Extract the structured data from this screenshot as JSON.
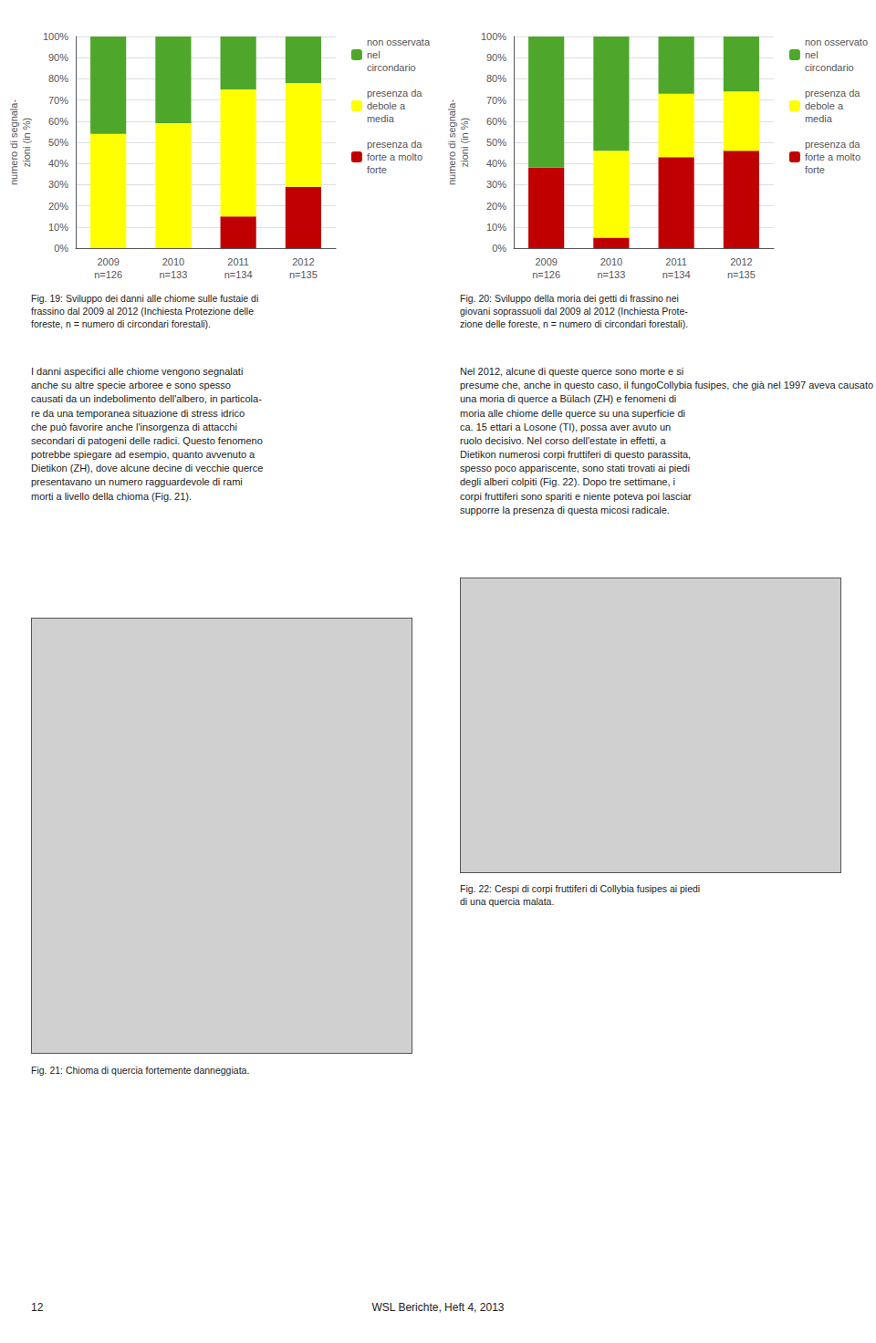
{
  "chart_data": [
    {
      "type": "bar",
      "stacked": true,
      "ylabel": "numero di segnala-\nzioni (in %)",
      "categories": [
        "2009\nn=126",
        "2010\nn=133",
        "2011\nn=134",
        "2012\nn=135"
      ],
      "series": [
        {
          "name": "presenza da\nforte a molto\nforte",
          "color": "#C00000",
          "values": [
            0,
            0,
            15,
            29
          ]
        },
        {
          "name": "presenza da\ndebole a\nmedia",
          "color": "#FFFF00",
          "values": [
            54,
            59,
            60,
            49
          ]
        },
        {
          "name": "non osservata\nnel\ncircondario",
          "color": "#4EA72A",
          "values": [
            46,
            41,
            25,
            22
          ]
        }
      ],
      "ylim": [
        0,
        100
      ],
      "yticks": [
        {
          "value": 0,
          "label": "0%"
        },
        {
          "value": 10,
          "label": "10%"
        },
        {
          "value": 20,
          "label": "20%"
        },
        {
          "value": 30,
          "label": "30%"
        },
        {
          "value": 40,
          "label": "40%"
        },
        {
          "value": 50,
          "label": "50%"
        },
        {
          "value": 60,
          "label": "60%"
        },
        {
          "value": 70,
          "label": "70%"
        },
        {
          "value": 80,
          "label": "80%"
        },
        {
          "value": 90,
          "label": "90%"
        },
        {
          "value": 100,
          "label": "100%"
        }
      ],
      "grid": true,
      "legend": "right",
      "annotations": [
        "Fig. 19: Sviluppo dei danni alle chiome sulle fustaie di\nfrassino dal 2009 al 2012 (Inchiesta Protezione delle\nforeste, n = numero di circondari forestali).",
        "I danni aspecifici alle chiome vengono segnalati\nanche su altre specie arboree e sono spesso\ncausati da un indebolimento dell'albero, in particola-\nre da una temporanea situazione di stress idrico\nche può favorire anche l'insorgenza di attacchi\nsecondari di patogeni delle radici. Questo fenomeno\npotrebbe spiegare ad esempio, quanto avvenuto a\nDietikon (ZH), dove alcune decine di vecchie querce\npresentavano un numero ragguardevole di rami\nmorti a livello della chioma (Fig. 21).",
        "Fig. 21: Chioma di quercia fortemente danneggiata.",
        "12"
      ]
    },
    {
      "type": "bar",
      "stacked": true,
      "ylabel": "numero di segnala-\nzioni (in %)",
      "categories": [
        "2009\nn=126",
        "2010\nn=133",
        "2011\nn=134",
        "2012\nn=135"
      ],
      "series": [
        {
          "name": "presenza da\nforte a molto\nforte",
          "color": "#C00000",
          "values": [
            38,
            5,
            43,
            46
          ]
        },
        {
          "name": "presenza da\ndebole a\nmedia",
          "color": "#FFFF00",
          "values": [
            0,
            41,
            30,
            28
          ]
        },
        {
          "name": "non osservato\nnel\ncircondario",
          "color": "#4EA72A",
          "values": [
            62,
            54,
            27,
            26
          ]
        }
      ],
      "ylim": [
        0,
        100
      ],
      "yticks": [
        {
          "value": 0,
          "label": "0%"
        },
        {
          "value": 10,
          "label": "10%"
        },
        {
          "value": 20,
          "label": "20%"
        },
        {
          "value": 30,
          "label": "30%"
        },
        {
          "value": 40,
          "label": "40%"
        },
        {
          "value": 50,
          "label": "50%"
        },
        {
          "value": 60,
          "label": "60%"
        },
        {
          "value": 70,
          "label": "70%"
        },
        {
          "value": 80,
          "label": "80%"
        },
        {
          "value": 90,
          "label": "90%"
        },
        {
          "value": 100,
          "label": "100%"
        }
      ],
      "grid": true,
      "legend": "right",
      "annotations": [
        "Fig. 20: Sviluppo della moria dei getti di frassino nei\ngiovani soprassuoli dal 2009 al 2012 (Inchiesta Prote-\nzione delle foreste, n = numero di circondari forestali).",
        "Nel 2012, alcune di queste querce sono morte e si\npresume che, anche in questo caso, il fungoCollybia fusipes, che già nel 1997 aveva causato\nuna moria di querce a Bülach (ZH) e fenomeni di\nmoria alle chiome delle querce su una superficie di\nca. 15 ettari a Losone (TI), possa aver avuto un\nruolo decisivo. Nel corso dell'estate in effetti, a\nDietikon numerosi corpi fruttiferi di questo parassita,\nspesso poco appariscente, sono stati trovati ai piedi\ndegli alberi colpiti (Fig. 22). Dopo tre settimane, i\ncorpi fruttiferi sono spariti e niente poteva poi lasciar\nsupporre la presenza di questa micosi radicale.",
        "Fig. 22: Cespi di corpi fruttiferi di Collybia fusipes ai piedi\ndi una quercia malata.",
        "WSL Berichte, Heft 4, 2013"
      ]
    }
  ]
}
